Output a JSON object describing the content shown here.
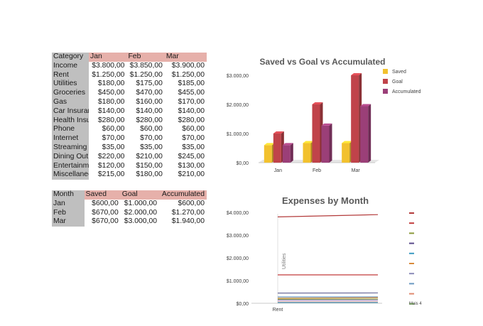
{
  "expense_table": {
    "header": [
      "Category",
      "Jan",
      "Feb",
      "Mar"
    ],
    "rows": [
      {
        "label": "Income",
        "values": [
          "$3.800,00",
          "$3.850,00",
          "$3.900,00"
        ]
      },
      {
        "label": "Rent",
        "values": [
          "$1.250,00",
          "$1.250,00",
          "$1.250,00"
        ]
      },
      {
        "label": "Utilities",
        "values": [
          "$180,00",
          "$175,00",
          "$185,00"
        ]
      },
      {
        "label": "Groceries",
        "values": [
          "$450,00",
          "$470,00",
          "$455,00"
        ]
      },
      {
        "label": "Gas",
        "values": [
          "$180,00",
          "$160,00",
          "$170,00"
        ]
      },
      {
        "label": "Car Insurance",
        "values": [
          "$140,00",
          "$140,00",
          "$140,00"
        ]
      },
      {
        "label": "Health Insurance",
        "values": [
          "$280,00",
          "$280,00",
          "$280,00"
        ]
      },
      {
        "label": "Phone",
        "values": [
          "$60,00",
          "$60,00",
          "$60,00"
        ]
      },
      {
        "label": "Internet",
        "values": [
          "$70,00",
          "$70,00",
          "$70,00"
        ]
      },
      {
        "label": "Streaming",
        "values": [
          "$35,00",
          "$35,00",
          "$35,00"
        ]
      },
      {
        "label": "Dining Out",
        "values": [
          "$220,00",
          "$210,00",
          "$245,00"
        ]
      },
      {
        "label": "Entertainment",
        "values": [
          "$120,00",
          "$150,00",
          "$130,00"
        ]
      },
      {
        "label": "Miscellaneous",
        "values": [
          "$215,00",
          "$180,00",
          "$210,00"
        ]
      }
    ]
  },
  "savings_table": {
    "header": [
      "Month",
      "Saved",
      "Goal",
      "Accumulated"
    ],
    "rows": [
      {
        "label": "Jan",
        "values": [
          "$600,00",
          "$1.000,00",
          "$600,00"
        ]
      },
      {
        "label": "Feb",
        "values": [
          "$670,00",
          "$2.000,00",
          "$1.270,00"
        ]
      },
      {
        "label": "Mar",
        "values": [
          "$670,00",
          "$3.000,00",
          "$1.940,00"
        ]
      }
    ]
  },
  "chart_data": [
    {
      "type": "bar",
      "title": "Saved vs Goal vs Accumulated",
      "categories": [
        "Jan",
        "Feb",
        "Mar"
      ],
      "series": [
        {
          "name": "Saved",
          "values": [
            600,
            670,
            670
          ],
          "color": "#f2c12e"
        },
        {
          "name": "Goal",
          "values": [
            1000,
            2000,
            3000
          ],
          "color": "#c0434a"
        },
        {
          "name": "Accumulated",
          "values": [
            600,
            1270,
            1940
          ],
          "color": "#9b3f78"
        }
      ],
      "ylim": [
        0,
        3000
      ],
      "y_ticks": [
        "$0,00",
        "$1.000,00",
        "$2.000,00",
        "$3.000,00"
      ],
      "legend": "right",
      "style": "3d-column",
      "grid": false
    },
    {
      "type": "line",
      "title": "Expenses by Month",
      "categories": [
        "Rent",
        ""
      ],
      "rotated_label": "Utilities",
      "legend_label": "Mais 4",
      "series": [
        {
          "values": [
            3800,
            3900
          ],
          "color": "#b33a3a"
        },
        {
          "values": [
            1250,
            1250
          ],
          "color": "#c23b3b"
        },
        {
          "values": [
            450,
            455
          ],
          "color": "#6b6b9a"
        },
        {
          "values": [
            280,
            280
          ],
          "color": "#5b8db8"
        },
        {
          "values": [
            220,
            245
          ],
          "color": "#d98a3a"
        },
        {
          "values": [
            180,
            185
          ],
          "color": "#7fa34a"
        },
        {
          "values": [
            140,
            140
          ],
          "color": "#9a7fb8"
        },
        {
          "values": [
            60,
            60
          ],
          "color": "#e08080"
        },
        {
          "values": [
            35,
            35
          ],
          "color": "#4aa3c2"
        }
      ],
      "legend_colors": [
        "#b33a3a",
        "#c23b3b",
        "#8a9a3a",
        "#5a4a8a",
        "#3a9ac2",
        "#d98a3a",
        "#8a8ab8",
        "#6a9ac2",
        "#e08a70",
        "#8ac26a"
      ],
      "ylim": [
        0,
        4000
      ],
      "y_ticks": [
        "$0,00",
        "$1.000,00",
        "$2.000,00",
        "$3.000,00",
        "$4.000,00"
      ],
      "legend": "right",
      "grid": false
    }
  ]
}
